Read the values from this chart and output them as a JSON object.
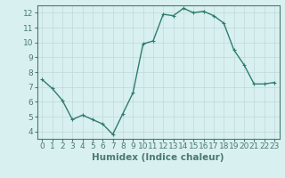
{
  "x": [
    0,
    1,
    2,
    3,
    4,
    5,
    6,
    7,
    8,
    9,
    10,
    11,
    12,
    13,
    14,
    15,
    16,
    17,
    18,
    19,
    20,
    21,
    22,
    23
  ],
  "y": [
    7.5,
    6.9,
    6.1,
    4.8,
    5.1,
    4.8,
    4.5,
    3.8,
    5.2,
    6.6,
    9.9,
    10.1,
    11.9,
    11.8,
    12.3,
    12.0,
    12.1,
    11.8,
    11.3,
    9.5,
    8.5,
    7.2,
    7.2,
    7.3
  ],
  "line_color": "#2e7d6e",
  "marker": "+",
  "marker_size": 3,
  "bg_color": "#d9f0f0",
  "grid_color": "#c0d8d8",
  "xlabel": "Humidex (Indice chaleur)",
  "xlim": [
    -0.5,
    23.5
  ],
  "ylim": [
    3.5,
    12.5
  ],
  "yticks": [
    4,
    5,
    6,
    7,
    8,
    9,
    10,
    11,
    12
  ],
  "xticks": [
    0,
    1,
    2,
    3,
    4,
    5,
    6,
    7,
    8,
    9,
    10,
    11,
    12,
    13,
    14,
    15,
    16,
    17,
    18,
    19,
    20,
    21,
    22,
    23
  ],
  "tick_label_fontsize": 6.5,
  "xlabel_fontsize": 7.5,
  "line_width": 1.0,
  "axis_color": "#4a7a6e",
  "spine_color": "#4a7a6e"
}
